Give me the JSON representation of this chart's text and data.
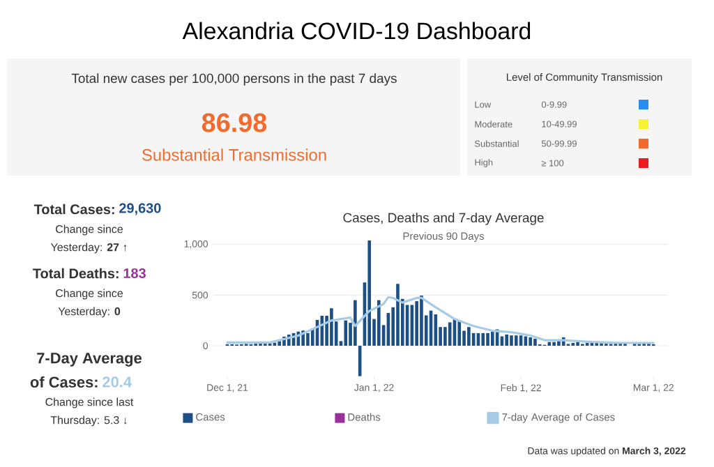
{
  "chart_data": {
    "type": "bar",
    "title": "Cases, Deaths and 7-day Average",
    "subtitle": "Previous 90 Days",
    "x": [
      "2021-12-01",
      "2021-12-02",
      "2021-12-03",
      "2021-12-04",
      "2021-12-05",
      "2021-12-06",
      "2021-12-07",
      "2021-12-08",
      "2021-12-09",
      "2021-12-10",
      "2021-12-11",
      "2021-12-12",
      "2021-12-13",
      "2021-12-14",
      "2021-12-15",
      "2021-12-16",
      "2021-12-17",
      "2021-12-18",
      "2021-12-19",
      "2021-12-20",
      "2021-12-21",
      "2021-12-22",
      "2021-12-23",
      "2021-12-24",
      "2021-12-25",
      "2021-12-26",
      "2021-12-27",
      "2021-12-28",
      "2021-12-29",
      "2021-12-30",
      "2021-12-31",
      "2022-01-01",
      "2022-01-02",
      "2022-01-03",
      "2022-01-04",
      "2022-01-05",
      "2022-01-06",
      "2022-01-07",
      "2022-01-08",
      "2022-01-09",
      "2022-01-10",
      "2022-01-11",
      "2022-01-12",
      "2022-01-13",
      "2022-01-14",
      "2022-01-15",
      "2022-01-16",
      "2022-01-17",
      "2022-01-18",
      "2022-01-19",
      "2022-01-20",
      "2022-01-21",
      "2022-01-22",
      "2022-01-23",
      "2022-01-24",
      "2022-01-25",
      "2022-01-26",
      "2022-01-27",
      "2022-01-28",
      "2022-01-29",
      "2022-01-30",
      "2022-01-31",
      "2022-02-01",
      "2022-02-02",
      "2022-02-03",
      "2022-02-04",
      "2022-02-05",
      "2022-02-06",
      "2022-02-07",
      "2022-02-08",
      "2022-02-09",
      "2022-02-10",
      "2022-02-11",
      "2022-02-12",
      "2022-02-13",
      "2022-02-14",
      "2022-02-15",
      "2022-02-16",
      "2022-02-17",
      "2022-02-18",
      "2022-02-19",
      "2022-02-20",
      "2022-02-21",
      "2022-02-22",
      "2022-02-23",
      "2022-02-24",
      "2022-02-25",
      "2022-02-26",
      "2022-02-27",
      "2022-02-28",
      "2022-03-01"
    ],
    "series": [
      {
        "name": "Cases",
        "color": "#1b4f86",
        "values": [
          15,
          15,
          12,
          15,
          18,
          15,
          20,
          20,
          20,
          25,
          30,
          45,
          90,
          110,
          125,
          140,
          150,
          125,
          170,
          255,
          296,
          296,
          370,
          240,
          46,
          250,
          227,
          450,
          -300,
          625,
          1040,
          264,
          450,
          204,
          324,
          380,
          611,
          463,
          403,
          403,
          440,
          495,
          300,
          347,
          310,
          185,
          185,
          231,
          264,
          240,
          148,
          185,
          125,
          125,
          125,
          125,
          139,
          162,
          93,
          111,
          102,
          102,
          102,
          93,
          83,
          70,
          14,
          9,
          37,
          37,
          46,
          83,
          18,
          28,
          37,
          18,
          28,
          28,
          28,
          25,
          20,
          18,
          20,
          22,
          25,
          null,
          20,
          18,
          22,
          20,
          15
        ]
      },
      {
        "name": "Deaths",
        "color": "#9b2f9b",
        "values": [
          0,
          0,
          0,
          0,
          0,
          0,
          0,
          0,
          0,
          0,
          0,
          0,
          0,
          0,
          0,
          0,
          0,
          0,
          0,
          0,
          0,
          0,
          0,
          0,
          0,
          0,
          0,
          0,
          0,
          0,
          0,
          0,
          0,
          0,
          0,
          0,
          0,
          0,
          0,
          0,
          0,
          0,
          0,
          0,
          0,
          0,
          0,
          0,
          0,
          0,
          0,
          0,
          0,
          0,
          0,
          0,
          0,
          0,
          0,
          0,
          0,
          0,
          0,
          0,
          0,
          0,
          0,
          0,
          0,
          0,
          0,
          0,
          0,
          0,
          0,
          0,
          0,
          0,
          0,
          0,
          0,
          0,
          0,
          0,
          0,
          0,
          0,
          0,
          0,
          0,
          0
        ]
      },
      {
        "name": "7-day Average of Cases",
        "type": "line",
        "color": "#a6cbe6",
        "x": [
          "2021-12-01",
          "2021-12-10",
          "2021-12-16",
          "2021-12-20",
          "2021-12-23",
          "2021-12-27",
          "2021-12-28",
          "2021-12-31",
          "2022-01-03",
          "2022-01-04",
          "2022-01-05",
          "2022-01-07",
          "2022-01-10",
          "2022-01-11",
          "2022-01-14",
          "2022-01-18",
          "2022-01-22",
          "2022-01-26",
          "2022-01-30",
          "2022-02-03",
          "2022-02-06",
          "2022-02-10",
          "2022-02-16",
          "2022-02-22",
          "2022-03-01"
        ],
        "values": [
          32,
          32,
          100,
          185,
          250,
          278,
          195,
          343,
          412,
          480,
          472,
          426,
          472,
          472,
          380,
          264,
          195,
          148,
          134,
          102,
          55,
          55,
          37,
          28,
          28
        ]
      }
    ],
    "xlim": [
      "2021-11-28",
      "2022-03-04"
    ],
    "xticks": [
      {
        "value": "2021-12-01",
        "label": "Dec 1, 21"
      },
      {
        "value": "2022-01-01",
        "label": "Jan 1, 22"
      },
      {
        "value": "2022-02-01",
        "label": "Feb 1, 22"
      },
      {
        "value": "2022-03-01",
        "label": "Mar 1, 22"
      }
    ],
    "ylim": [
      -330,
      1060
    ],
    "yticks": [
      0,
      500,
      {
        "value": 1000,
        "label": "1,000"
      }
    ],
    "grid": "y",
    "legend": "bottom",
    "annotations": [
      "Alexandria COVID-19 Dashboard",
      "Total new cases per 100,000 persons in the past 7 days",
      "86.98",
      "Substantial Transmission",
      "Level of Community Transmission",
      "Low",
      "Moderate",
      "Substantial",
      "High",
      "0-9.99",
      "10-49.99",
      "50-99.99",
      "≥ 100",
      "Total Cases:",
      "29,630",
      "Change since",
      "Yesterday: **27** ↑",
      "Total Deaths:",
      "183",
      "Change since",
      "Yesterday: **0**",
      "7-Day Average",
      "of Cases:",
      "20.4",
      "Change since last",
      "Thursday: 5.3 ↓",
      "Data was updated on **March 3, 2022**"
    ]
  }
}
